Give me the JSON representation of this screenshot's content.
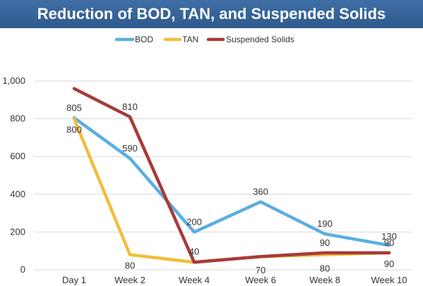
{
  "chart_data": {
    "type": "line",
    "title": "Reduction of BOD, TAN, and Suspended Solids",
    "categories": [
      "Day 1",
      "Week 2",
      "Week 4",
      "Week 6",
      "Week 8",
      "Week 10"
    ],
    "ylim": [
      0,
      1000
    ],
    "yticks": [
      "0",
      "200",
      "400",
      "600",
      "800",
      "1,000"
    ],
    "grid": true,
    "legend_position": "top",
    "series": [
      {
        "name": "BOD",
        "color": "#5aaee0",
        "values": [
          805,
          590,
          200,
          360,
          190,
          130
        ],
        "labels": [
          "805",
          "590",
          "200",
          "360",
          "190",
          "130"
        ]
      },
      {
        "name": "TAN",
        "color": "#f2bd3c",
        "values": [
          800,
          80,
          40,
          70,
          80,
          90
        ],
        "labels": [
          "800",
          "80",
          "40",
          "70",
          "80",
          "90"
        ]
      },
      {
        "name": "Suspended Solids",
        "color": "#a83a3a",
        "values": [
          960,
          810,
          40,
          70,
          90,
          90
        ],
        "labels": [
          "",
          "810",
          "",
          "",
          "90",
          "90"
        ]
      }
    ]
  }
}
